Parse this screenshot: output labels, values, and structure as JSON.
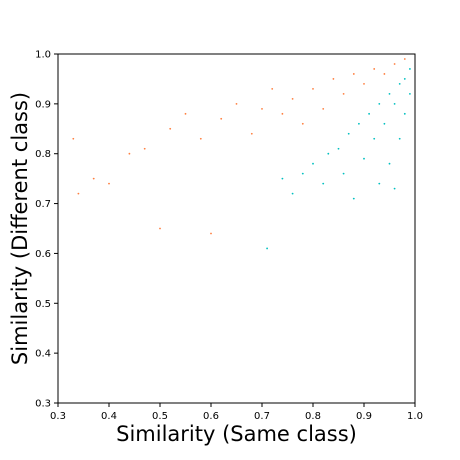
{
  "chart_data": {
    "type": "scatter",
    "title": "",
    "xlabel": "Similarity (Same class)",
    "ylabel": "Similarity (Different class)",
    "xlim": [
      0.3,
      1.0
    ],
    "ylim": [
      0.3,
      1.0
    ],
    "xticks": [
      0.3,
      0.4,
      0.5,
      0.6,
      0.7,
      0.8,
      0.9,
      1.0
    ],
    "yticks": [
      0.3,
      0.4,
      0.5,
      0.6,
      0.7,
      0.8,
      0.9,
      1.0
    ],
    "xtick_labels": [
      "0.3",
      "0.4",
      "0.5",
      "0.6",
      "0.7",
      "0.8",
      "0.9",
      "1.0"
    ],
    "ytick_labels": [
      "0.3",
      "0.4",
      "0.5",
      "0.6",
      "0.7",
      "0.8",
      "0.9",
      "1.0"
    ],
    "grid": false,
    "legend": "none",
    "series": [
      {
        "color": "#00c0c0",
        "points": [
          [
            0.71,
            0.61
          ],
          [
            0.74,
            0.75
          ],
          [
            0.76,
            0.72
          ],
          [
            0.78,
            0.76
          ],
          [
            0.8,
            0.78
          ],
          [
            0.82,
            0.74
          ],
          [
            0.83,
            0.8
          ],
          [
            0.85,
            0.81
          ],
          [
            0.86,
            0.76
          ],
          [
            0.87,
            0.84
          ],
          [
            0.88,
            0.71
          ],
          [
            0.89,
            0.86
          ],
          [
            0.9,
            0.79
          ],
          [
            0.91,
            0.88
          ],
          [
            0.92,
            0.83
          ],
          [
            0.93,
            0.9
          ],
          [
            0.93,
            0.74
          ],
          [
            0.94,
            0.86
          ],
          [
            0.95,
            0.92
          ],
          [
            0.95,
            0.78
          ],
          [
            0.96,
            0.9
          ],
          [
            0.96,
            0.73
          ],
          [
            0.97,
            0.94
          ],
          [
            0.97,
            0.83
          ],
          [
            0.98,
            0.95
          ],
          [
            0.98,
            0.88
          ],
          [
            0.99,
            0.97
          ],
          [
            0.99,
            0.92
          ]
        ]
      },
      {
        "color": "#ff7f3f",
        "points": [
          [
            0.33,
            0.83
          ],
          [
            0.34,
            0.72
          ],
          [
            0.37,
            0.75
          ],
          [
            0.4,
            0.74
          ],
          [
            0.44,
            0.8
          ],
          [
            0.47,
            0.81
          ],
          [
            0.5,
            0.65
          ],
          [
            0.52,
            0.85
          ],
          [
            0.55,
            0.88
          ],
          [
            0.58,
            0.83
          ],
          [
            0.6,
            0.64
          ],
          [
            0.62,
            0.87
          ],
          [
            0.65,
            0.9
          ],
          [
            0.68,
            0.84
          ],
          [
            0.7,
            0.89
          ],
          [
            0.72,
            0.93
          ],
          [
            0.74,
            0.88
          ],
          [
            0.76,
            0.91
          ],
          [
            0.78,
            0.86
          ],
          [
            0.8,
            0.93
          ],
          [
            0.82,
            0.89
          ],
          [
            0.84,
            0.95
          ],
          [
            0.86,
            0.92
          ],
          [
            0.88,
            0.96
          ],
          [
            0.9,
            0.94
          ],
          [
            0.92,
            0.97
          ],
          [
            0.94,
            0.96
          ],
          [
            0.96,
            0.98
          ],
          [
            0.98,
            0.99
          ]
        ]
      }
    ]
  }
}
